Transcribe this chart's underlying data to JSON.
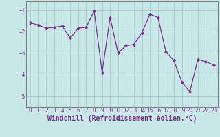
{
  "x": [
    0,
    1,
    2,
    3,
    4,
    5,
    6,
    7,
    8,
    9,
    10,
    11,
    12,
    13,
    14,
    15,
    16,
    17,
    18,
    19,
    20,
    21,
    22,
    23
  ],
  "y": [
    -1.6,
    -1.7,
    -1.85,
    -1.8,
    -1.75,
    -2.3,
    -1.85,
    -1.8,
    -1.05,
    -3.9,
    -1.35,
    -3.0,
    -2.65,
    -2.6,
    -2.05,
    -1.2,
    -1.35,
    -2.95,
    -3.35,
    -4.35,
    -4.8,
    -3.3,
    -3.4,
    -3.55
  ],
  "line_color": "#7B2D8B",
  "marker": "D",
  "marker_size": 2.2,
  "bg_color": "#C8E8E8",
  "grid_color": "#A0C4C4",
  "xlabel": "Windchill (Refroidissement éolien,°C)",
  "xlabel_color": "#7B2D8B",
  "yticks": [
    -5,
    -4,
    -3,
    -2,
    -1
  ],
  "xticks": [
    0,
    1,
    2,
    3,
    4,
    5,
    6,
    7,
    8,
    9,
    10,
    11,
    12,
    13,
    14,
    15,
    16,
    17,
    18,
    19,
    20,
    21,
    22,
    23
  ],
  "xlim": [
    -0.5,
    23.5
  ],
  "ylim": [
    -5.5,
    -0.6
  ],
  "tick_color": "#7B2D8B",
  "tick_fontsize": 5.5,
  "xlabel_fontsize": 7,
  "spine_color": "#808080"
}
